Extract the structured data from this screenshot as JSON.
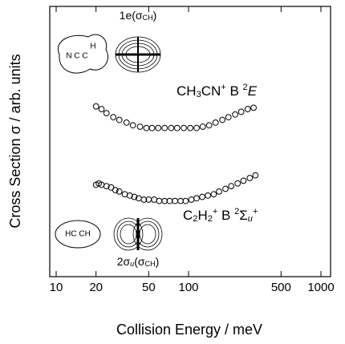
{
  "chart_data": {
    "type": "scatter",
    "xlabel": "Collision Energy / meV",
    "ylabel": "Cross Section σ / arb. units",
    "xscale": "log",
    "xlim": [
      10,
      1000
    ],
    "xticks": [
      10,
      20,
      50,
      100,
      500,
      1000
    ],
    "ylim": [
      0,
      10
    ],
    "marker_color": "#000000",
    "series": [
      {
        "x": [
          20,
          22,
          24,
          27,
          30,
          34,
          38,
          43,
          48,
          53,
          59,
          66,
          74,
          82,
          92,
          103,
          115,
          128,
          143,
          160,
          180,
          200,
          225,
          250,
          280,
          310
        ],
        "values": [
          6.3,
          6.2,
          6.05,
          5.9,
          5.8,
          5.7,
          5.6,
          5.55,
          5.5,
          5.5,
          5.5,
          5.5,
          5.5,
          5.5,
          5.5,
          5.5,
          5.5,
          5.55,
          5.6,
          5.7,
          5.8,
          5.9,
          6.0,
          6.1,
          6.2,
          6.25
        ]
      },
      {
        "x": [
          20,
          21,
          22,
          24,
          26,
          28,
          30,
          33,
          36,
          39,
          42,
          46,
          50,
          55,
          60,
          66,
          72,
          79,
          87,
          95,
          105,
          115,
          127,
          140,
          155,
          170,
          190,
          210,
          235,
          260,
          290,
          320
        ],
        "values": [
          3.4,
          3.45,
          3.4,
          3.35,
          3.3,
          3.2,
          3.15,
          3.05,
          3.0,
          2.95,
          2.9,
          2.85,
          2.85,
          2.85,
          2.8,
          2.8,
          2.8,
          2.8,
          2.8,
          2.8,
          2.85,
          2.9,
          2.95,
          3.0,
          3.05,
          3.15,
          3.25,
          3.35,
          3.45,
          3.55,
          3.65,
          3.75
        ]
      }
    ],
    "annotations": [
      {
        "segments": [
          {
            "t": "1e(σ"
          },
          {
            "t": "CH",
            "sub": true
          },
          {
            "t": ")"
          }
        ]
      },
      {
        "segments": [
          {
            "t": "CH"
          },
          {
            "t": "3",
            "sub": true
          },
          {
            "t": "CN"
          },
          {
            "t": "+",
            "sup": true
          },
          {
            "t": " B "
          },
          {
            "t": "2",
            "sup": true
          },
          {
            "t": "E",
            "italic": true
          }
        ]
      },
      {
        "segments": [
          {
            "t": "C"
          },
          {
            "t": "2",
            "sub": true
          },
          {
            "t": "H"
          },
          {
            "t": "2",
            "sub": true
          },
          {
            "t": "+",
            "sup": true
          },
          {
            "t": " B "
          },
          {
            "t": "2",
            "sup": true
          },
          {
            "t": "Σ"
          },
          {
            "t": "u",
            "sub": true,
            "italic": true
          },
          {
            "t": "+",
            "sup": true
          }
        ]
      },
      {
        "segments": [
          {
            "t": "2σ"
          },
          {
            "t": "u",
            "sub": true,
            "italic": true
          },
          {
            "t": "(σ"
          },
          {
            "t": "CH",
            "sub": true
          },
          {
            "t": ")"
          }
        ]
      }
    ],
    "molecules": [
      "N C C",
      "H",
      "HC CH"
    ]
  }
}
